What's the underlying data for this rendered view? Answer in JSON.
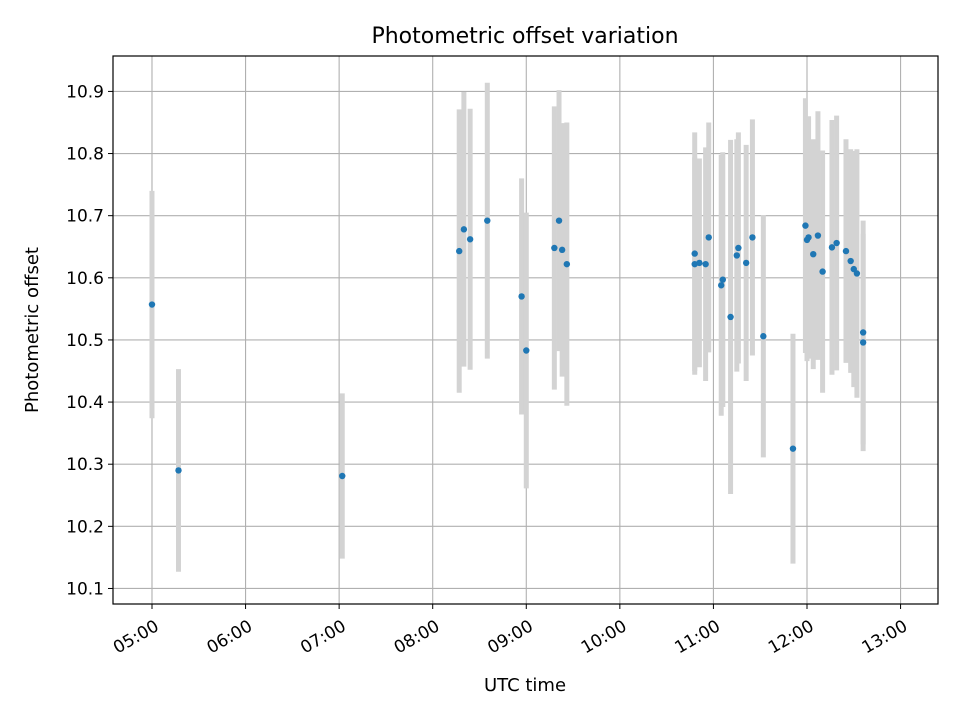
{
  "chart_data": {
    "type": "scatter",
    "title": "Photometric offset variation",
    "xlabel": "UTC time",
    "ylabel": "Photometric offset",
    "x_tick_labels": [
      "05:00",
      "06:00",
      "07:00",
      "08:00",
      "09:00",
      "10:00",
      "11:00",
      "12:00",
      "13:00"
    ],
    "y_tick_labels": [
      "10.1",
      "10.2",
      "10.3",
      "10.4",
      "10.5",
      "10.6",
      "10.7",
      "10.8",
      "10.9"
    ],
    "y_ticks": [
      10.1,
      10.2,
      10.3,
      10.4,
      10.5,
      10.6,
      10.7,
      10.8,
      10.9
    ],
    "xlim": [
      "04:35",
      "13:24"
    ],
    "ylim": [
      10.075,
      10.957
    ],
    "grid": true,
    "colors": {
      "points": "#1f77b4",
      "errorbars": "#d3d3d3",
      "grid": "#b0b0b0"
    },
    "series": [
      {
        "x": [
          "05:00",
          "05:17",
          "07:02",
          "08:17",
          "08:20",
          "08:24",
          "08:35",
          "08:57",
          "09:00",
          "09:18",
          "09:21",
          "09:23",
          "09:26",
          "10:48",
          "10:48",
          "10:51",
          "10:55",
          "10:57",
          "11:05",
          "11:06",
          "11:11",
          "11:15",
          "11:16",
          "11:21",
          "11:25",
          "11:32",
          "11:51",
          "11:59",
          "12:00",
          "12:01",
          "12:04",
          "12:07",
          "12:10",
          "12:16",
          "12:19",
          "12:25",
          "12:28",
          "12:30",
          "12:32",
          "12:36",
          "12:36"
        ],
        "y": [
          10.557,
          10.29,
          10.281,
          10.643,
          10.678,
          10.662,
          10.692,
          10.57,
          10.483,
          10.648,
          10.692,
          10.645,
          10.622,
          10.639,
          10.622,
          10.624,
          10.622,
          10.665,
          10.588,
          10.597,
          10.537,
          10.636,
          10.648,
          10.624,
          10.665,
          10.506,
          10.325,
          10.684,
          10.661,
          10.665,
          10.638,
          10.668,
          10.61,
          10.649,
          10.656,
          10.643,
          10.627,
          10.614,
          10.607,
          10.512,
          10.496
        ],
        "yerr": [
          0.183,
          0.163,
          0.133,
          0.228,
          0.221,
          0.21,
          0.222,
          0.19,
          0.222,
          0.228,
          0.21,
          0.204,
          0.228,
          0.195,
          0.172,
          0.168,
          0.188,
          0.185,
          0.21,
          0.205,
          0.285,
          0.187,
          0.186,
          0.19,
          0.19,
          0.195,
          0.185,
          0.205,
          0.195,
          0.195,
          0.185,
          0.2,
          0.195,
          0.205,
          0.205,
          0.18,
          0.18,
          0.19,
          0.2,
          0.18,
          0.175
        ]
      }
    ]
  }
}
